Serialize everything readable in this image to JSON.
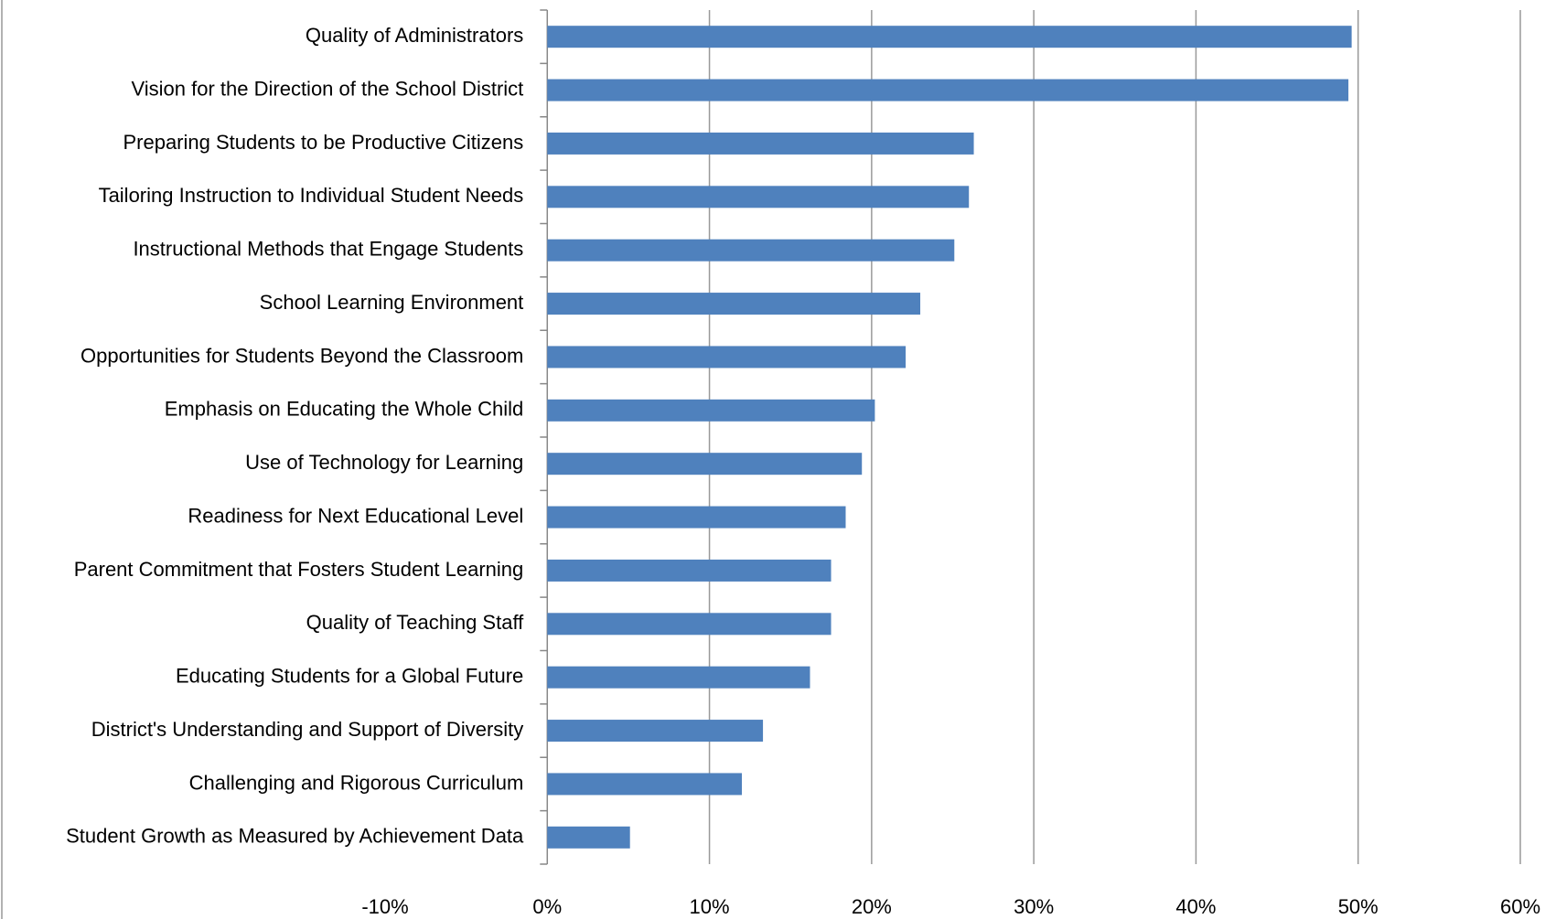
{
  "chart_data": {
    "type": "barh",
    "categories": [
      "Quality of Administrators",
      "Vision for the Direction of the School District",
      "Preparing Students to be Productive Citizens",
      "Tailoring Instruction to Individual Student Needs",
      "Instructional Methods that Engage Students",
      "School Learning Environment",
      "Opportunities for Students Beyond the Classroom",
      "Emphasis on Educating the Whole Child",
      "Use of Technology for Learning",
      "Readiness for Next Educational Level",
      "Parent Commitment that Fosters Student Learning",
      "Quality of Teaching Staff",
      "Educating Students for a Global Future",
      "District's Understanding and Support of Diversity",
      "Challenging and Rigorous Curriculum",
      "Student Growth as Measured by Achievement Data"
    ],
    "values": [
      49.6,
      49.4,
      26.3,
      26.0,
      25.1,
      23.0,
      22.1,
      20.2,
      19.4,
      18.4,
      17.5,
      17.5,
      16.2,
      13.3,
      12.0,
      5.1
    ],
    "color": "#4f81bd",
    "xlim": [
      -10,
      60
    ],
    "xticks": [
      {
        "value": -10,
        "label": "-10%"
      },
      {
        "value": 0,
        "label": "0%"
      },
      {
        "value": 10,
        "label": "10%"
      },
      {
        "value": 20,
        "label": "20%"
      },
      {
        "value": 30,
        "label": "30%"
      },
      {
        "value": 40,
        "label": "40%"
      },
      {
        "value": 50,
        "label": "50%"
      },
      {
        "value": 60,
        "label": "60%"
      }
    ],
    "grid": true
  }
}
